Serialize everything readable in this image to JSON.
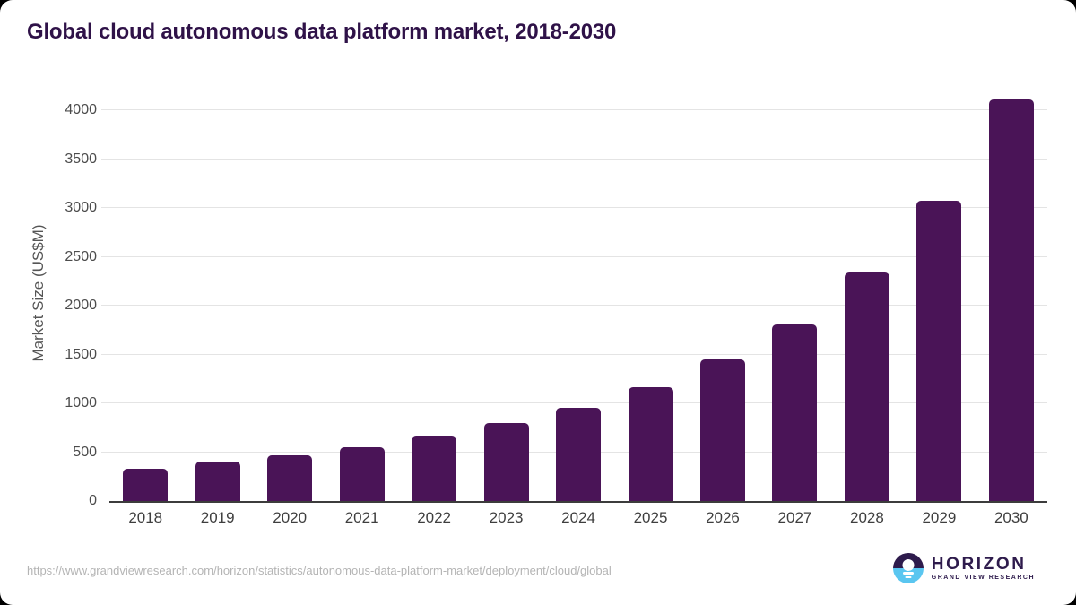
{
  "title": "Global cloud autonomous data platform market, 2018-2030",
  "source_url": "https://www.grandviewresearch.com/horizon/statistics/autonomous-data-platform-market/deployment/cloud/global",
  "logo": {
    "name": "HORIZON",
    "tagline": "GRAND VIEW RESEARCH",
    "icon": "sun-over-water-icon"
  },
  "colors": {
    "bar": "#4a1457",
    "title": "#2f1248",
    "gridline": "#e4e4e4",
    "baseline": "#3c3c3c",
    "tick_text": "#4c4c4c",
    "xtick_text": "#3e3e3e",
    "axis_title_text": "#555555",
    "url_text": "#b4b4b4",
    "logo_purple": "#2e1b4c",
    "logo_blue": "#5ac6f0",
    "card_background": "#ffffff"
  },
  "chart_data": {
    "type": "bar",
    "title": "Global cloud autonomous data platform market, 2018-2030",
    "categories": [
      "2018",
      "2019",
      "2020",
      "2021",
      "2022",
      "2023",
      "2024",
      "2025",
      "2026",
      "2027",
      "2028",
      "2029",
      "2030"
    ],
    "values": [
      335,
      400,
      470,
      552,
      662,
      797,
      955,
      1163,
      1448,
      1813,
      2340,
      3072,
      4113
    ],
    "xlabel": "",
    "ylabel": "Market Size (US$M)",
    "ylim": [
      0,
      4260
    ],
    "yticks": [
      0,
      500,
      1000,
      1500,
      2000,
      2500,
      3000,
      3500,
      4000
    ],
    "grid": true,
    "legend": false,
    "bar_color": "#4a1457"
  }
}
